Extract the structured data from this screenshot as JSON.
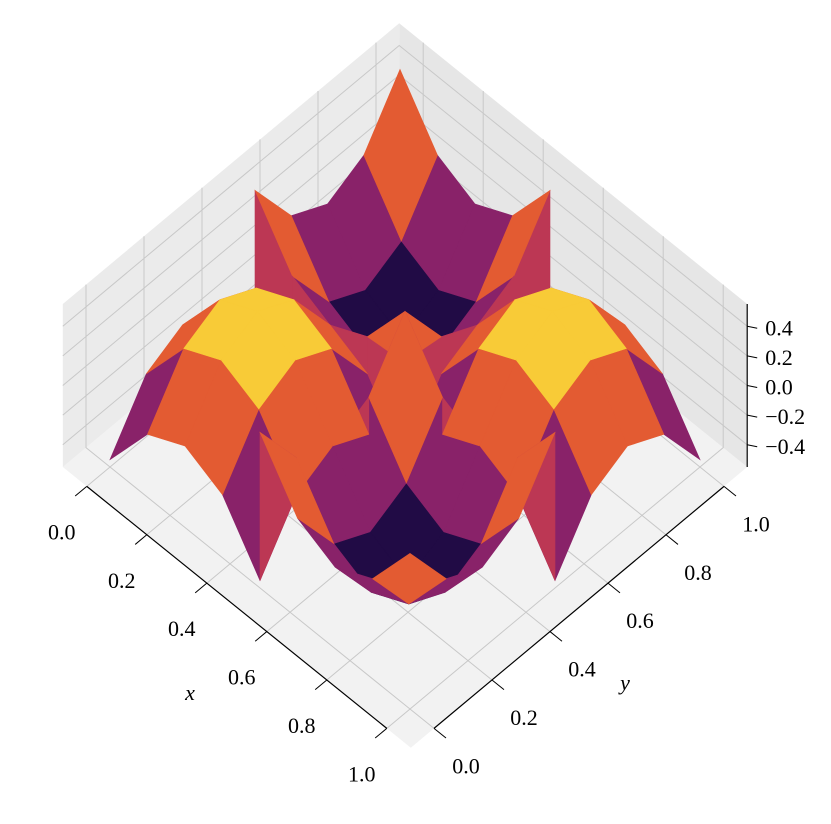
{
  "chart_data": {
    "type": "surface",
    "xlabel": "x",
    "ylabel": "y",
    "x": [
      0,
      0.125,
      0.25,
      0.375,
      0.5,
      0.5,
      0.625,
      0.75,
      0.875,
      1
    ],
    "y": [
      0,
      0.125,
      0.25,
      0.375,
      0.5,
      0.5,
      0.625,
      0.75,
      0.875,
      1
    ],
    "z": [
      [
        -0.5,
        -0.125,
        0,
        -0.125,
        -0.5,
        0.5,
        0.125,
        0,
        0.125,
        0.5
      ],
      [
        -0.125,
        0.25,
        0.375,
        0.25,
        -0.125,
        0.125,
        -0.25,
        -0.375,
        -0.25,
        0.125
      ],
      [
        0,
        0.375,
        0.5,
        0.375,
        0,
        0,
        -0.375,
        -0.5,
        -0.375,
        0
      ],
      [
        -0.125,
        0.25,
        0.375,
        0.25,
        -0.125,
        0.125,
        -0.25,
        -0.375,
        -0.25,
        0.125
      ],
      [
        -0.5,
        -0.125,
        0,
        -0.125,
        -0.5,
        0.5,
        0.125,
        0,
        0.125,
        0.5
      ],
      [
        0.5,
        0.125,
        0,
        0.125,
        0.5,
        -0.5,
        -0.125,
        0,
        -0.125,
        -0.5
      ],
      [
        0.125,
        -0.25,
        -0.375,
        -0.25,
        0.125,
        -0.125,
        0.25,
        0.375,
        0.25,
        -0.125
      ],
      [
        0,
        -0.375,
        -0.5,
        -0.375,
        0,
        0,
        0.375,
        0.5,
        0.375,
        0
      ],
      [
        0.125,
        -0.25,
        -0.375,
        -0.25,
        0.125,
        -0.125,
        0.25,
        0.375,
        0.25,
        -0.125
      ],
      [
        0.5,
        0.125,
        0,
        0.125,
        0.5,
        -0.5,
        -0.125,
        0,
        -0.125,
        -0.5
      ]
    ],
    "colormap": "inferno",
    "xlim": [
      0,
      1
    ],
    "ylim": [
      0,
      1
    ],
    "zlim": [
      -0.55,
      0.55
    ],
    "xticks": [
      {
        "value": 0,
        "label": "0.0"
      },
      0.2,
      0.4,
      0.6,
      0.8,
      {
        "value": 1,
        "label": "1.0"
      }
    ],
    "yticks": [
      {
        "value": 0,
        "label": "0.0"
      },
      0.2,
      0.4,
      0.6,
      0.8,
      {
        "value": 1,
        "label": "1.0"
      }
    ],
    "zticks": [
      {
        "value": -0.4,
        "label": "−0.4"
      },
      {
        "value": -0.2,
        "label": "−0.2"
      },
      {
        "value": 0,
        "label": "0.0"
      },
      0.2,
      0.4
    ],
    "grid": true
  }
}
